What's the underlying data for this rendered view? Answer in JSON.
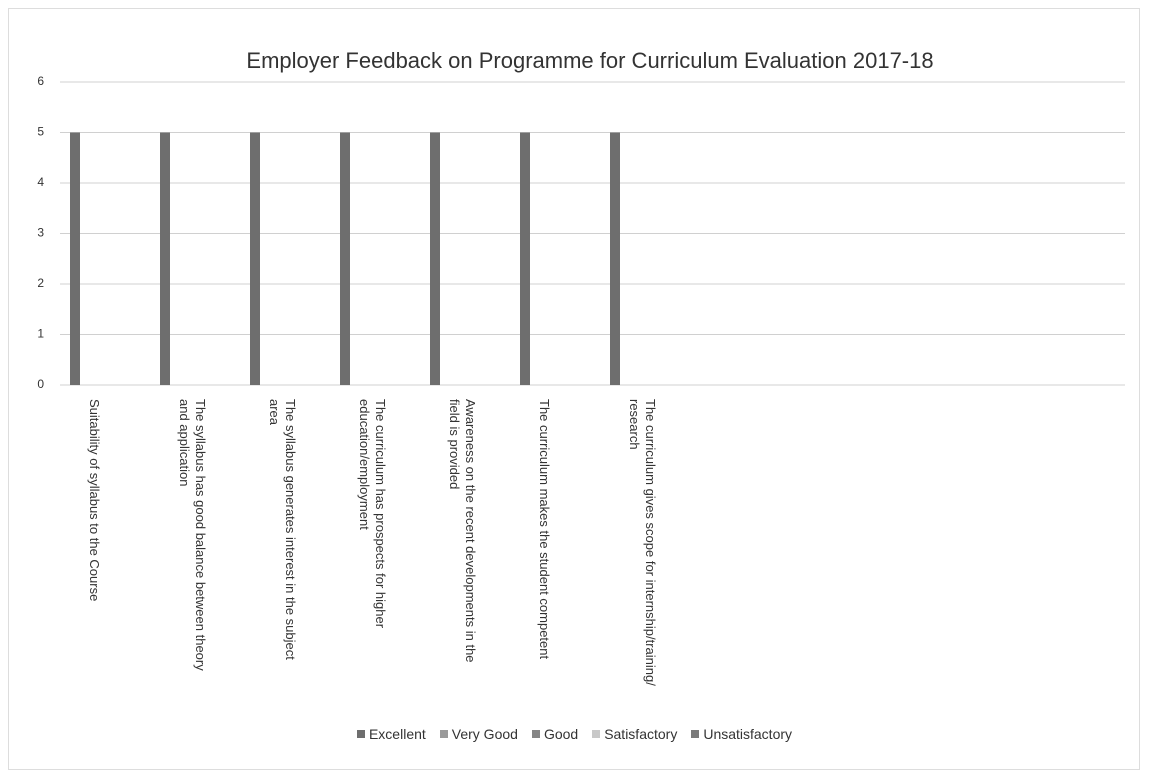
{
  "chart_data": {
    "type": "bar",
    "title": "Employer  Feedback on Programme for Curriculum Evaluation  2017-18",
    "categories": [
      "Suitability of syllabus to the Course",
      "The syllabus has good balance between theory and application",
      "The syllabus generates interest in the subject area",
      "The curriculum has prospects for higher education/employment",
      "Awareness on the recent developments in the field is provided",
      "The curriculum makes the student competent",
      "The curriculum gives scope for internship/training/ research"
    ],
    "series": [
      {
        "name": "Excellent",
        "color": "#6e6e6e",
        "values": [
          5,
          5,
          5,
          5,
          5,
          5,
          5
        ]
      },
      {
        "name": "Very Good",
        "color": "#9a9a9a",
        "values": [
          0,
          0,
          0,
          0,
          0,
          0,
          0
        ]
      },
      {
        "name": "Good",
        "color": "#858585",
        "values": [
          0,
          0,
          0,
          0,
          0,
          0,
          0
        ]
      },
      {
        "name": "Satisfactory",
        "color": "#c8c8c8",
        "values": [
          0,
          0,
          0,
          0,
          0,
          0,
          0
        ]
      },
      {
        "name": "Unsatisfactory",
        "color": "#7a7a7a",
        "values": [
          0,
          0,
          0,
          0,
          0,
          0,
          0
        ]
      }
    ],
    "ylim": [
      0,
      6
    ],
    "yticks": [
      0,
      1,
      2,
      3,
      4,
      5,
      6
    ],
    "grid": true,
    "legend": "bottom"
  }
}
